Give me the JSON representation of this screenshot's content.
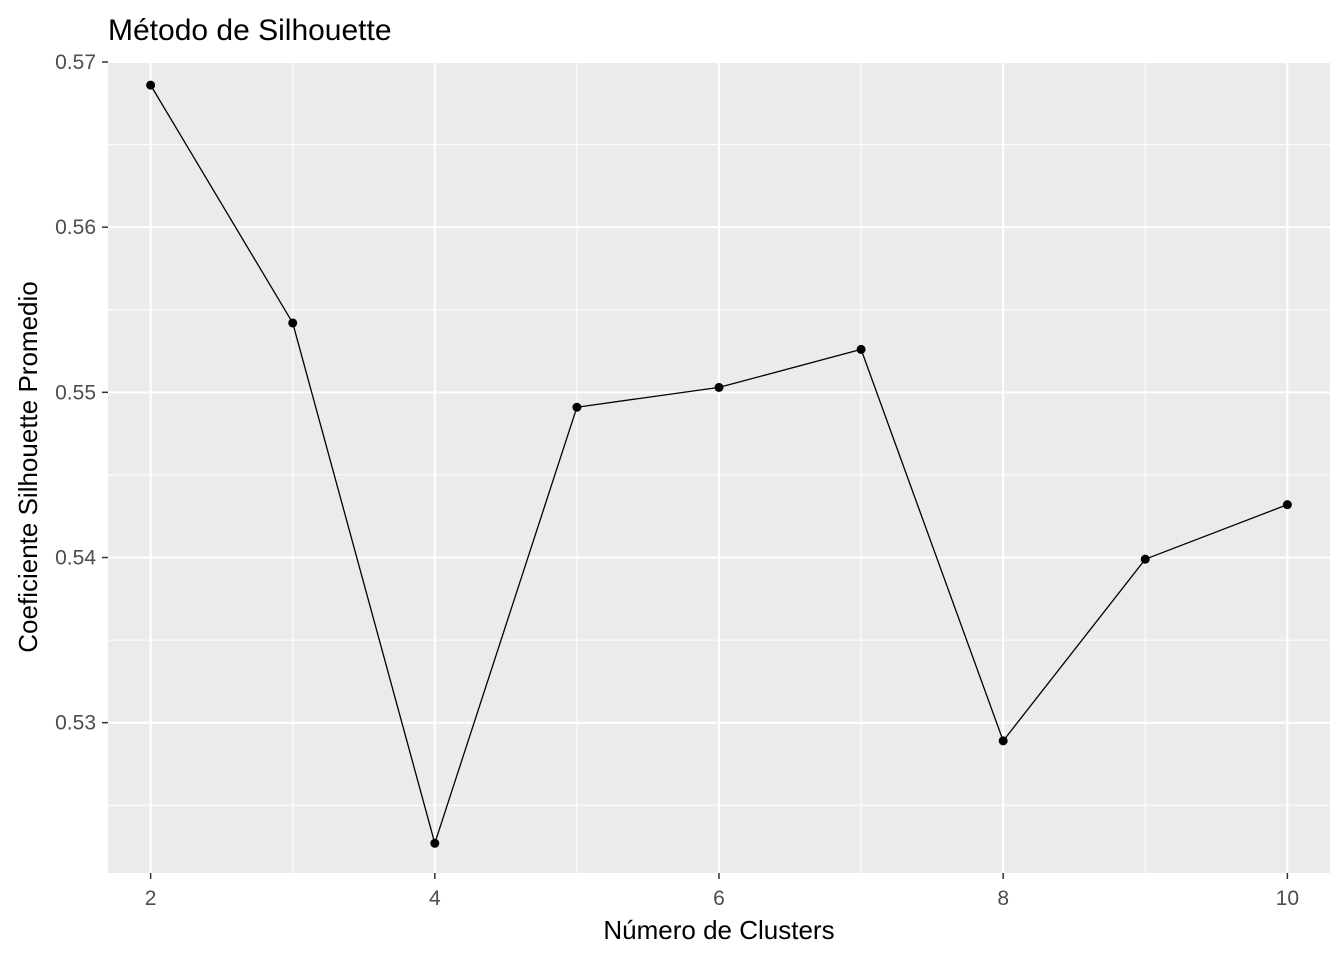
{
  "chart_data": {
    "type": "line",
    "title": "Método de Silhouette",
    "xlabel": "Número de Clusters",
    "ylabel": "Coeficiente Silhouette Promedio",
    "x": [
      2,
      3,
      4,
      5,
      6,
      7,
      8,
      9,
      10
    ],
    "series": [
      {
        "values": [
          0.5686,
          0.5542,
          0.5227,
          0.5491,
          0.5503,
          0.5526,
          0.5289,
          0.5399,
          0.5432
        ]
      }
    ],
    "xlim": [
      1.7,
      10.3
    ],
    "ylim": [
      0.5209,
      0.57
    ],
    "x_ticks": [
      2,
      4,
      6,
      8,
      10
    ],
    "x_tick_labels": [
      "2",
      "4",
      "6",
      "8",
      "10"
    ],
    "x_minor_ticks": [
      3,
      5,
      7,
      9
    ],
    "y_ticks": [
      0.53,
      0.54,
      0.55,
      0.56,
      0.57
    ],
    "y_tick_labels": [
      "0.53",
      "0.54",
      "0.55",
      "0.56",
      "0.57"
    ],
    "y_minor_ticks": [
      0.525,
      0.535,
      0.545,
      0.555,
      0.565
    ],
    "grid": true,
    "legend": "none",
    "colors": {
      "panel_background": "#ebebeb",
      "grid_line": "#ffffff",
      "series_line": "#000000",
      "point_fill": "#000000",
      "tick_mark": "#333333",
      "tick_label": "#4d4d4d"
    }
  }
}
